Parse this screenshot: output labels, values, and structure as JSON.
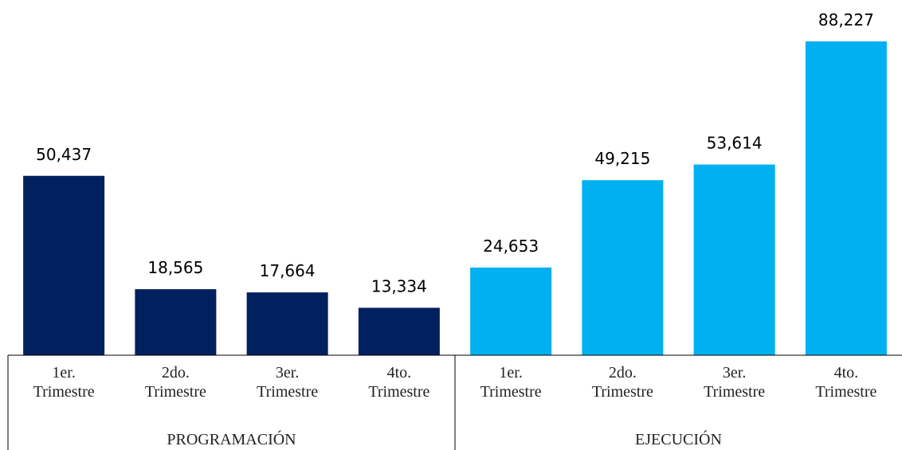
{
  "chart_data": {
    "type": "bar",
    "categories": [
      "1er. Trimestre",
      "2do. Trimestre",
      "3er. Trimestre",
      "4to. Trimestre"
    ],
    "series": [
      {
        "name": "PROGRAMACIÓN",
        "color": "#002060",
        "values": [
          50437,
          18565,
          17664,
          13334
        ],
        "value_labels": [
          "50,437",
          "18,565",
          "17,664",
          "13,334"
        ]
      },
      {
        "name": "EJECUCIÓN",
        "color": "#00b0f0",
        "values": [
          24653,
          49215,
          53614,
          88227
        ],
        "value_labels": [
          "24,653",
          "49,215",
          "53,614",
          "88,227"
        ]
      }
    ]
  }
}
